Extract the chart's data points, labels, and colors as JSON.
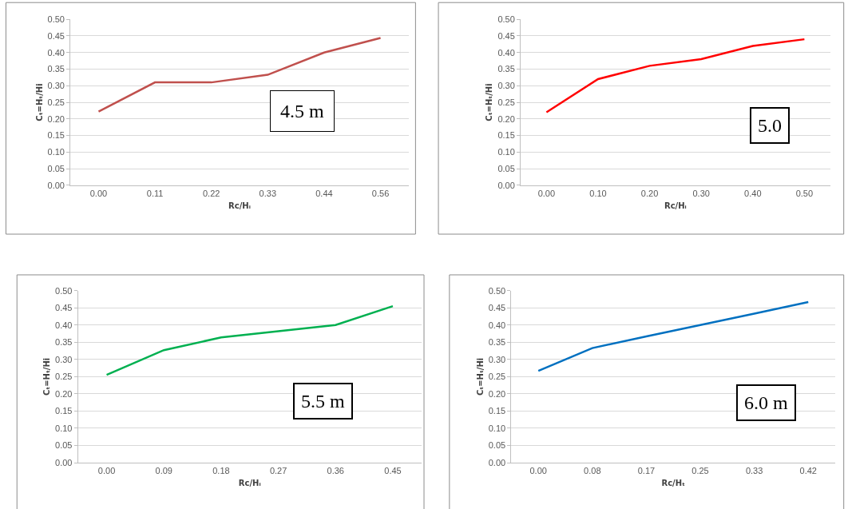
{
  "chart_data": [
    {
      "type": "line",
      "xlabel": "Rc/Hᵢ",
      "ylabel": "Cₜ=Hₜ/Hi",
      "categories": [
        "0.00",
        "0.11",
        "0.22",
        "0.33",
        "0.44",
        "0.56"
      ],
      "series": [
        {
          "color": "#c0504d",
          "values": [
            0.222,
            0.31,
            0.31,
            0.333,
            0.4,
            0.444
          ]
        }
      ],
      "ylim": [
        0,
        0.5
      ],
      "yticks": [
        {
          "value": 0,
          "label": "0.00"
        },
        {
          "value": 0.05,
          "label": "0.05"
        },
        {
          "value": 0.1,
          "label": "0.10"
        },
        {
          "value": 0.15,
          "label": "0.15"
        },
        {
          "value": 0.2,
          "label": "0.20"
        },
        {
          "value": 0.25,
          "label": "0.25"
        },
        {
          "value": 0.3,
          "label": "0.30"
        },
        {
          "value": 0.35,
          "label": "0.35"
        },
        {
          "value": 0.4,
          "label": "0.40"
        },
        {
          "value": 0.45,
          "label": "0.45"
        },
        {
          "value": 0.5,
          "label": "0.50"
        }
      ],
      "grid": "y",
      "marker": "none",
      "annotations": [
        "4.5 m"
      ]
    },
    {
      "type": "line",
      "xlabel": "Rc/Hᵢ",
      "ylabel": "Cₜ=Hₜ/Hi",
      "categories": [
        "0.00",
        "0.10",
        "0.20",
        "0.30",
        "0.40",
        "0.50"
      ],
      "series": [
        {
          "color": "#ff0000",
          "values": [
            0.22,
            0.32,
            0.36,
            0.38,
            0.42,
            0.44
          ]
        }
      ],
      "ylim": [
        0,
        0.5
      ],
      "yticks": [
        {
          "value": 0,
          "label": "0.00"
        },
        {
          "value": 0.05,
          "label": "0.05"
        },
        {
          "value": 0.1,
          "label": "0.10"
        },
        {
          "value": 0.15,
          "label": "0.15"
        },
        {
          "value": 0.2,
          "label": "0.20"
        },
        {
          "value": 0.25,
          "label": "0.25"
        },
        {
          "value": 0.3,
          "label": "0.30"
        },
        {
          "value": 0.35,
          "label": "0.35"
        },
        {
          "value": 0.4,
          "label": "0.40"
        },
        {
          "value": 0.45,
          "label": "0.45"
        },
        {
          "value": 0.5,
          "label": "0.50"
        }
      ],
      "grid": "y",
      "marker": "none",
      "annotations": [
        "5.0"
      ]
    },
    {
      "type": "line",
      "xlabel": "Rc/Hᵢ",
      "ylabel": "Cₜ=Hₜ/Hi",
      "categories": [
        "0.00",
        "0.09",
        "0.18",
        "0.27",
        "0.36",
        "0.45"
      ],
      "series": [
        {
          "color": "#00b050",
          "values": [
            0.255,
            0.327,
            0.364,
            0.382,
            0.4,
            0.455
          ]
        }
      ],
      "ylim": [
        0,
        0.5
      ],
      "yticks": [
        {
          "value": 0,
          "label": "0.00"
        },
        {
          "value": 0.05,
          "label": "0.05"
        },
        {
          "value": 0.1,
          "label": "0.10"
        },
        {
          "value": 0.15,
          "label": "0.15"
        },
        {
          "value": 0.2,
          "label": "0.20"
        },
        {
          "value": 0.25,
          "label": "0.25"
        },
        {
          "value": 0.3,
          "label": "0.30"
        },
        {
          "value": 0.35,
          "label": "0.35"
        },
        {
          "value": 0.4,
          "label": "0.40"
        },
        {
          "value": 0.45,
          "label": "0.45"
        },
        {
          "value": 0.5,
          "label": "0.50"
        }
      ],
      "grid": "y",
      "marker": "none",
      "annotations": [
        "5.5 m"
      ]
    },
    {
      "type": "line",
      "xlabel": "Rc/Hₜ",
      "ylabel": "Cₜ=Hₜ/Hi",
      "categories": [
        "0.00",
        "0.08",
        "0.17",
        "0.25",
        "0.33",
        "0.42"
      ],
      "series": [
        {
          "color": "#0070c0",
          "values": [
            0.267,
            0.333,
            0.367,
            0.4,
            0.433,
            0.467
          ]
        }
      ],
      "ylim": [
        0,
        0.5
      ],
      "yticks": [
        {
          "value": 0,
          "label": "0.00"
        },
        {
          "value": 0.05,
          "label": "0.05"
        },
        {
          "value": 0.1,
          "label": "0.10"
        },
        {
          "value": 0.15,
          "label": "0.15"
        },
        {
          "value": 0.2,
          "label": "0.20"
        },
        {
          "value": 0.25,
          "label": "0.25"
        },
        {
          "value": 0.3,
          "label": "0.30"
        },
        {
          "value": 0.35,
          "label": "0.35"
        },
        {
          "value": 0.4,
          "label": "0.40"
        },
        {
          "value": 0.45,
          "label": "0.45"
        },
        {
          "value": 0.5,
          "label": "0.50"
        }
      ],
      "grid": "y",
      "marker": "none",
      "annotations": [
        "6.0 m"
      ]
    }
  ]
}
